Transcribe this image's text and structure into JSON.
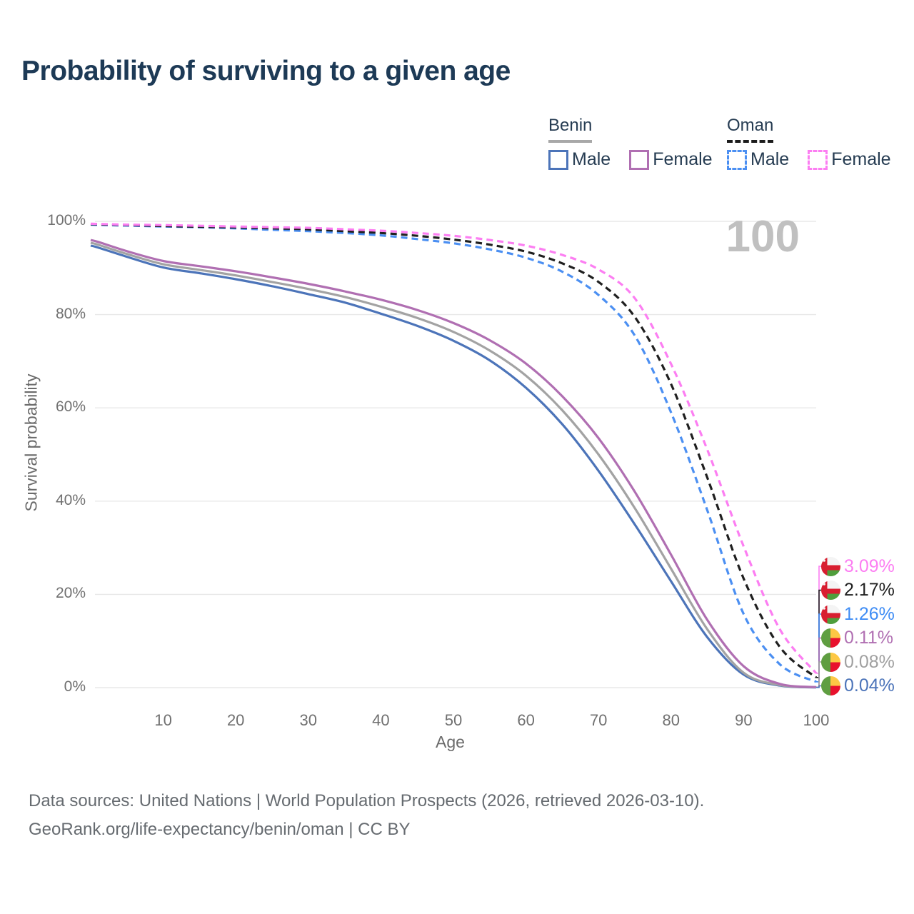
{
  "title": "Probability of surviving to a given age",
  "watermark": "100",
  "legend": {
    "groups": [
      {
        "name": "Benin",
        "line_style": "solid",
        "underline_color": "#a8a8a8",
        "items": [
          {
            "label": "Male",
            "color": "#4c74b9"
          },
          {
            "label": "Female",
            "color": "#b06fb2"
          }
        ]
      },
      {
        "name": "Oman",
        "line_style": "dashed",
        "underline_color": "#1c1c1c",
        "items": [
          {
            "label": "Male",
            "color": "#4b8ff2"
          },
          {
            "label": "Female",
            "color": "#fc7ef2"
          }
        ]
      }
    ]
  },
  "chart_data": {
    "type": "line",
    "title": "Probability of surviving to a given age",
    "xlabel": "Age",
    "ylabel": "Survival probability",
    "xlim": [
      0,
      100
    ],
    "ylim": [
      0,
      100
    ],
    "grid": true,
    "x_ticks": [
      10,
      20,
      30,
      40,
      50,
      60,
      70,
      80,
      90,
      100
    ],
    "y_ticks": [
      "100%",
      "80%",
      "60%",
      "40%",
      "20%",
      "0%"
    ],
    "y_tick_values": [
      100,
      80,
      60,
      40,
      20,
      0
    ],
    "x": [
      0,
      1,
      5,
      10,
      15,
      20,
      25,
      30,
      35,
      40,
      45,
      50,
      55,
      60,
      65,
      70,
      75,
      80,
      85,
      90,
      95,
      100
    ],
    "series": [
      {
        "name": "Benin Male",
        "country": "Benin",
        "sex": "Male",
        "color": "#4c74b9",
        "dash": "solid",
        "values": [
          94.8,
          94.4,
          92.4,
          90.1,
          88.9,
          87.6,
          86.1,
          84.4,
          82.6,
          80.2,
          77.6,
          74.4,
          70.2,
          64.3,
          56.5,
          46.5,
          35.0,
          22.8,
          10.8,
          2.8,
          0.45,
          0.04
        ]
      },
      {
        "name": "Benin Average",
        "country": "Benin",
        "sex": "Both",
        "color": "#a3a3a3",
        "dash": "solid",
        "values": [
          95.4,
          95.0,
          93.0,
          90.8,
          89.6,
          88.4,
          87.0,
          85.5,
          83.8,
          81.7,
          79.3,
          76.3,
          72.3,
          66.9,
          59.5,
          50.0,
          38.5,
          25.5,
          12.5,
          3.2,
          0.55,
          0.08
        ]
      },
      {
        "name": "Benin Female",
        "country": "Benin",
        "sex": "Female",
        "color": "#b06fb2",
        "dash": "solid",
        "values": [
          96.0,
          95.6,
          93.6,
          91.5,
          90.4,
          89.3,
          88.0,
          86.6,
          85.0,
          83.2,
          81.0,
          78.2,
          74.5,
          69.5,
          62.5,
          53.5,
          42.0,
          28.5,
          14.5,
          4.6,
          0.8,
          0.11
        ]
      },
      {
        "name": "Oman Male",
        "country": "Oman",
        "sex": "Male",
        "color": "#4b8ff2",
        "dash": "dashed",
        "values": [
          99.3,
          99.25,
          99.1,
          98.9,
          98.75,
          98.5,
          98.2,
          97.9,
          97.5,
          97.0,
          96.2,
          95.3,
          94.0,
          92.2,
          89.2,
          84.2,
          75.5,
          59.0,
          38.0,
          15.8,
          5.0,
          1.26
        ]
      },
      {
        "name": "Oman Average",
        "country": "Oman",
        "sex": "Both",
        "color": "#1f1f1f",
        "dash": "dashed",
        "values": [
          99.4,
          99.35,
          99.2,
          99.0,
          98.85,
          98.7,
          98.5,
          98.3,
          97.9,
          97.5,
          96.9,
          96.1,
          95.0,
          93.5,
          91.0,
          87.0,
          79.5,
          65.1,
          45.0,
          23.4,
          8.7,
          2.17
        ]
      },
      {
        "name": "Oman Female",
        "country": "Oman",
        "sex": "Female",
        "color": "#fc7ef2",
        "dash": "dashed",
        "values": [
          99.5,
          99.45,
          99.3,
          99.2,
          99.05,
          98.9,
          98.75,
          98.6,
          98.3,
          98.0,
          97.5,
          96.9,
          96.0,
          94.8,
          92.8,
          89.7,
          83.5,
          69.4,
          51.0,
          30.3,
          12.5,
          3.09
        ]
      }
    ],
    "end_labels": [
      {
        "value": "3.09%",
        "numeric": 3.09,
        "series": "Oman Female",
        "flag": "oman",
        "color": "#fc7ef2"
      },
      {
        "value": "2.17%",
        "numeric": 2.17,
        "series": "Oman Average",
        "flag": "oman",
        "color": "#1f1f1f"
      },
      {
        "value": "1.26%",
        "numeric": 1.26,
        "series": "Oman Male",
        "flag": "oman",
        "color": "#3f8df5"
      },
      {
        "value": "0.11%",
        "numeric": 0.11,
        "series": "Benin Female",
        "flag": "benin",
        "color": "#b06fb2"
      },
      {
        "value": "0.08%",
        "numeric": 0.08,
        "series": "Benin Average",
        "flag": "benin",
        "color": "#a0a0a0"
      },
      {
        "value": "0.04%",
        "numeric": 0.04,
        "series": "Benin Male",
        "flag": "benin",
        "color": "#4c74b9"
      }
    ]
  },
  "footer": {
    "line1": "Data sources: United Nations | World Population Prospects (2026, retrieved 2026-03-10).",
    "line2": "GeoRank.org/life-expectancy/benin/oman | CC BY"
  }
}
